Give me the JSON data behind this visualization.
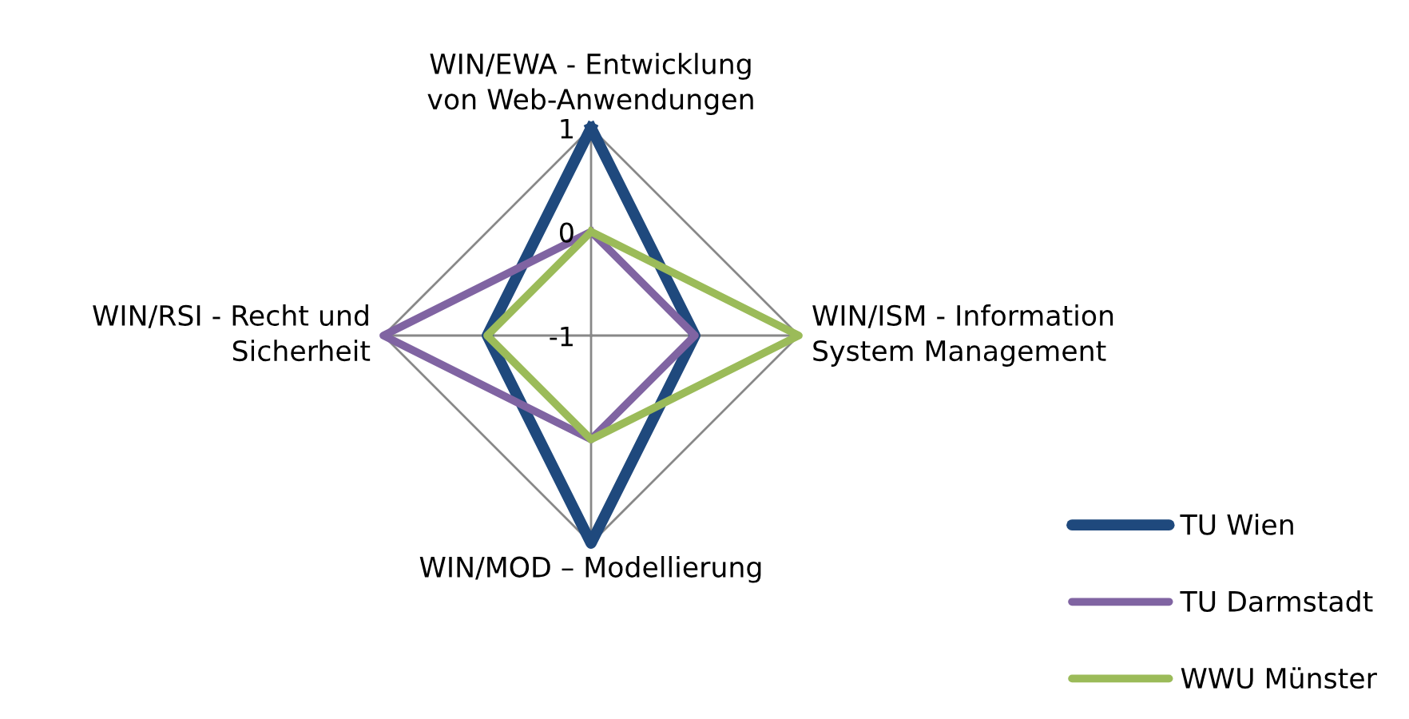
{
  "chart_data": {
    "type": "radar",
    "categories": [
      "WIN/EWA - Entwicklung\nvon Web-Anwendungen",
      "WIN/ISM - Information\nSystem Management",
      "WIN/MOD – Modellierung",
      "WIN/RSI - Recht und\nSicherheit"
    ],
    "series": [
      {
        "name": "TU Wien",
        "color": "#1f497d",
        "values": [
          1,
          0,
          1,
          0
        ]
      },
      {
        "name": "TU Darmstadt",
        "color": "#8064a2",
        "values": [
          0,
          0,
          0,
          1
        ]
      },
      {
        "name": "WWU Münster",
        "color": "#9bbb59",
        "values": [
          0,
          1,
          0,
          0
        ]
      }
    ],
    "ylim": [
      -1,
      1
    ],
    "yticks": [
      -1,
      0,
      1
    ],
    "grid": true,
    "legend": "bottom right",
    "marker": "none",
    "line_style": "solid"
  }
}
